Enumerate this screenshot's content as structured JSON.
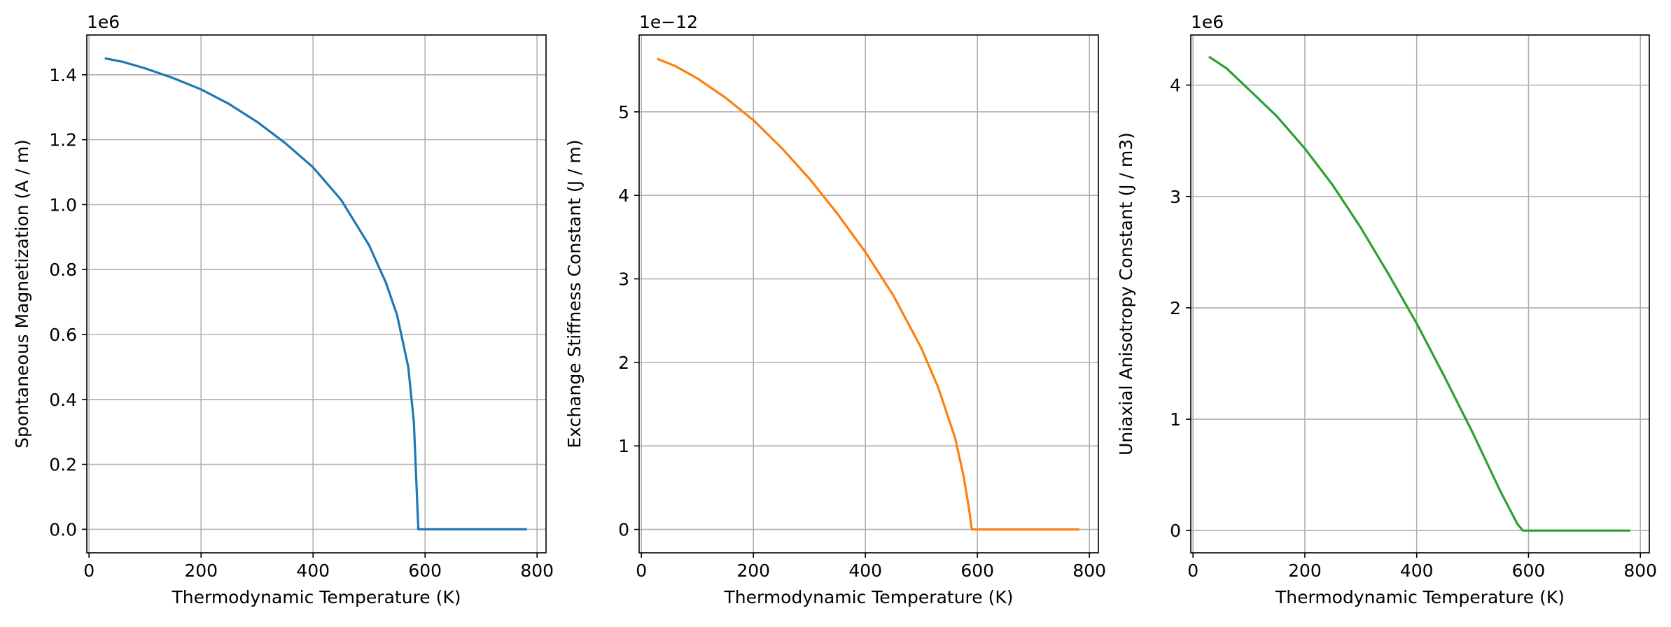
{
  "chart_data": [
    {
      "type": "line",
      "xlabel": "Thermodynamic Temperature (K)",
      "ylabel": "Spontaneous Magnetization (A / m)",
      "y_offset_text": "1e6",
      "xlim": [
        -4,
        816
      ],
      "ylim": [
        -0.0725,
        1.5225
      ],
      "xticks": [
        0,
        200,
        400,
        600,
        800
      ],
      "xtick_labels": [
        "0",
        "200",
        "400",
        "600",
        "800"
      ],
      "yticks": [
        0.0,
        0.2,
        0.4,
        0.6,
        0.8,
        1.0,
        1.2,
        1.4
      ],
      "ytick_labels": [
        "0.0",
        "0.2",
        "0.4",
        "0.6",
        "0.8",
        "1.0",
        "1.2",
        "1.4"
      ],
      "grid": true,
      "series": [
        {
          "color": "#1f77b4",
          "x": [
            30,
            60,
            100,
            150,
            200,
            250,
            300,
            350,
            400,
            450,
            500,
            530,
            550,
            570,
            580,
            588,
            590,
            600,
            650,
            700,
            780
          ],
          "y": [
            1.45,
            1.44,
            1.42,
            1.39,
            1.355,
            1.31,
            1.255,
            1.19,
            1.115,
            1.015,
            0.875,
            0.76,
            0.66,
            0.5,
            0.33,
            0.0,
            0.0,
            0.0,
            0.0,
            0.0,
            0.0
          ]
        }
      ]
    },
    {
      "type": "line",
      "xlabel": "Thermodynamic Temperature (K)",
      "ylabel": "Exchange Stiffness Constant (J / m)",
      "y_offset_text": "1e−12",
      "xlim": [
        -4,
        816
      ],
      "ylim": [
        -0.28,
        5.92
      ],
      "xticks": [
        0,
        200,
        400,
        600,
        800
      ],
      "xtick_labels": [
        "0",
        "200",
        "400",
        "600",
        "800"
      ],
      "yticks": [
        0,
        1,
        2,
        3,
        4,
        5
      ],
      "ytick_labels": [
        "0",
        "1",
        "2",
        "3",
        "4",
        "5"
      ],
      "grid": true,
      "series": [
        {
          "color": "#ff7f0e",
          "x": [
            30,
            60,
            100,
            150,
            200,
            250,
            300,
            350,
            400,
            450,
            500,
            530,
            560,
            575,
            585,
            590,
            600,
            650,
            700,
            780
          ],
          "y": [
            5.63,
            5.55,
            5.4,
            5.17,
            4.9,
            4.57,
            4.2,
            3.78,
            3.32,
            2.8,
            2.17,
            1.7,
            1.1,
            0.65,
            0.25,
            0.0,
            0.0,
            0.0,
            0.0,
            0.0
          ]
        }
      ]
    },
    {
      "type": "line",
      "xlabel": "Thermodynamic Temperature (K)",
      "ylabel": "Uniaxial Anisotropy Constant (J / m3)",
      "y_offset_text": "1e6",
      "xlim": [
        -4,
        816
      ],
      "ylim": [
        -0.2,
        4.45
      ],
      "xticks": [
        0,
        200,
        400,
        600,
        800
      ],
      "xtick_labels": [
        "0",
        "200",
        "400",
        "600",
        "800"
      ],
      "yticks": [
        0,
        1,
        2,
        3,
        4
      ],
      "ytick_labels": [
        "0",
        "1",
        "2",
        "3",
        "4"
      ],
      "grid": true,
      "series": [
        {
          "color": "#2ca02c",
          "x": [
            30,
            60,
            100,
            150,
            200,
            250,
            300,
            350,
            400,
            450,
            500,
            550,
            580,
            590,
            600,
            650,
            700,
            780
          ],
          "y": [
            4.25,
            4.15,
            3.96,
            3.72,
            3.43,
            3.1,
            2.72,
            2.3,
            1.86,
            1.38,
            0.88,
            0.35,
            0.06,
            0.0,
            0.0,
            0.0,
            0.0,
            0.0
          ]
        }
      ]
    }
  ]
}
